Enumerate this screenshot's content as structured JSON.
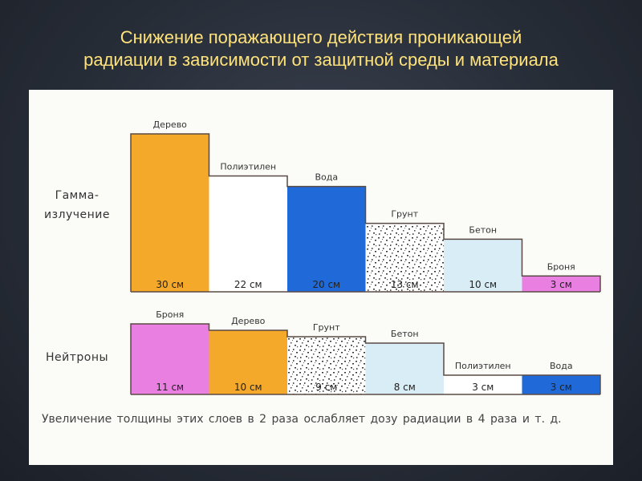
{
  "title": {
    "line1": "Снижение поражающего действия проникающей",
    "line2": "радиации в зависимости от защитной среды и материала"
  },
  "note": "Увеличение толщины этих слоев в 2 раза ослабляет дозу радиации в 4 раза и т. д.",
  "colors": {
    "Дерево": "#f5a92a",
    "Полиэтилен": "#ffffff",
    "Вода": "#1f6ad8",
    "Грунт": "#ffffff",
    "Бетон": "#d9edf6",
    "Броня": "#ea7fe2",
    "outline": "#5a4a44",
    "value_text": "#222222"
  },
  "chart_data": [
    {
      "type": "bar",
      "row_label": [
        "Гамма-",
        "излучение"
      ],
      "categories": [
        "Дерево",
        "Полиэтилен",
        "Вода",
        "Грунт",
        "Бетон",
        "Броня"
      ],
      "values": [
        30,
        22,
        20,
        13,
        10,
        3
      ],
      "value_labels": [
        "30 см",
        "22 см",
        "20 см",
        "13 см",
        "10 см",
        "3 см"
      ],
      "unit": "см",
      "ylim": [
        0,
        30
      ],
      "grid": false
    },
    {
      "type": "bar",
      "row_label": [
        "Нейтроны"
      ],
      "categories": [
        "Броня",
        "Дерево",
        "Грунт",
        "Бетон",
        "Полиэтилен",
        "Вода"
      ],
      "values": [
        11,
        10,
        9,
        8,
        3,
        3
      ],
      "value_labels": [
        "11 см",
        "10 см",
        "9 см",
        "8 см",
        "3 см",
        "3 см"
      ],
      "unit": "см",
      "ylim": [
        0,
        11
      ],
      "grid": false
    }
  ]
}
